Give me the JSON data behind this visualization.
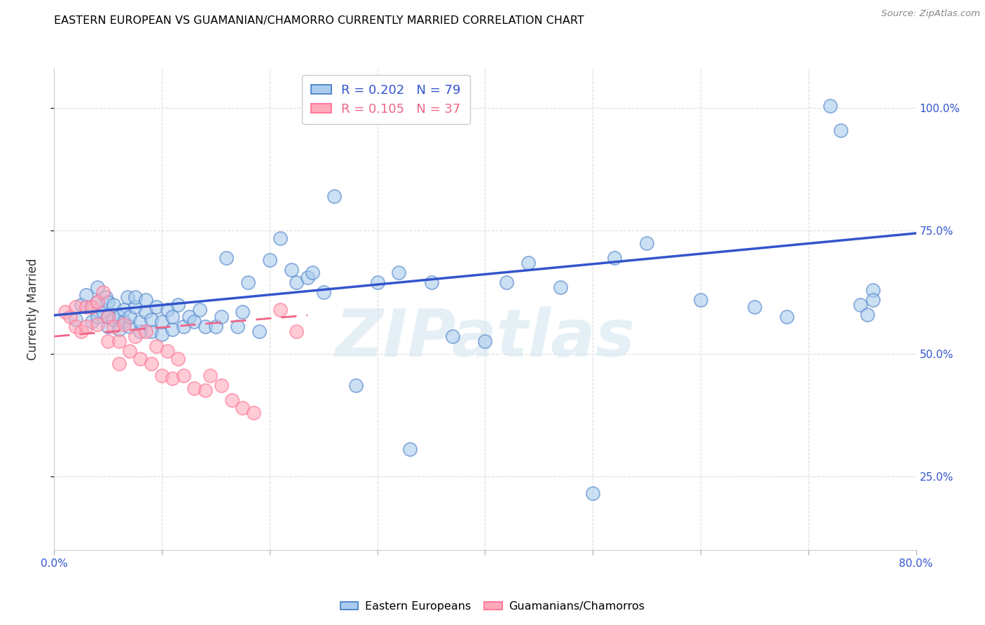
{
  "title": "EASTERN EUROPEAN VS GUAMANIAN/CHAMORRO CURRENTLY MARRIED CORRELATION CHART",
  "source": "Source: ZipAtlas.com",
  "ylabel": "Currently Married",
  "xlim": [
    0.0,
    0.8
  ],
  "ylim": [
    0.1,
    1.08
  ],
  "xtick_positions": [
    0.0,
    0.1,
    0.2,
    0.3,
    0.4,
    0.5,
    0.6,
    0.7,
    0.8
  ],
  "xticklabels": [
    "0.0%",
    "",
    "",
    "",
    "",
    "",
    "",
    "",
    "80.0%"
  ],
  "ytick_positions": [
    0.25,
    0.5,
    0.75,
    1.0
  ],
  "yticklabels": [
    "25.0%",
    "50.0%",
    "75.0%",
    "100.0%"
  ],
  "blue_R": 0.202,
  "blue_N": 79,
  "pink_R": 0.105,
  "pink_N": 37,
  "blue_fill_color": "#AACCEE",
  "blue_edge_color": "#5588CC",
  "pink_fill_color": "#FFAABB",
  "pink_edge_color": "#FF7799",
  "blue_line_color": "#3355CC",
  "pink_line_color": "#EE6688",
  "watermark_text": "ZIPatlas",
  "legend_label_blue": "Eastern Europeans",
  "legend_label_pink": "Guamanians/Chamorros",
  "blue_scatter_x": [
    0.02,
    0.025,
    0.03,
    0.035,
    0.035,
    0.04,
    0.04,
    0.04,
    0.045,
    0.048,
    0.05,
    0.05,
    0.05,
    0.055,
    0.055,
    0.06,
    0.06,
    0.065,
    0.065,
    0.068,
    0.07,
    0.07,
    0.075,
    0.075,
    0.08,
    0.08,
    0.085,
    0.085,
    0.09,
    0.09,
    0.095,
    0.1,
    0.1,
    0.105,
    0.11,
    0.11,
    0.115,
    0.12,
    0.125,
    0.13,
    0.135,
    0.14,
    0.15,
    0.155,
    0.16,
    0.17,
    0.175,
    0.18,
    0.19,
    0.2,
    0.21,
    0.22,
    0.225,
    0.235,
    0.24,
    0.25,
    0.26,
    0.28,
    0.3,
    0.32,
    0.33,
    0.35,
    0.37,
    0.4,
    0.42,
    0.44,
    0.47,
    0.5,
    0.52,
    0.55,
    0.6,
    0.65,
    0.68,
    0.72,
    0.73,
    0.748,
    0.755,
    0.76,
    0.76
  ],
  "blue_scatter_y": [
    0.57,
    0.6,
    0.62,
    0.565,
    0.595,
    0.575,
    0.605,
    0.635,
    0.585,
    0.615,
    0.555,
    0.575,
    0.605,
    0.57,
    0.6,
    0.55,
    0.575,
    0.565,
    0.59,
    0.615,
    0.555,
    0.575,
    0.595,
    0.615,
    0.545,
    0.565,
    0.585,
    0.61,
    0.545,
    0.57,
    0.595,
    0.54,
    0.565,
    0.59,
    0.55,
    0.575,
    0.6,
    0.555,
    0.575,
    0.565,
    0.59,
    0.555,
    0.555,
    0.575,
    0.695,
    0.555,
    0.585,
    0.645,
    0.545,
    0.69,
    0.735,
    0.67,
    0.645,
    0.655,
    0.665,
    0.625,
    0.82,
    0.435,
    0.645,
    0.665,
    0.305,
    0.645,
    0.535,
    0.525,
    0.645,
    0.685,
    0.635,
    0.215,
    0.695,
    0.725,
    0.61,
    0.595,
    0.575,
    1.005,
    0.955,
    0.6,
    0.58,
    0.63,
    0.61
  ],
  "pink_scatter_x": [
    0.01,
    0.015,
    0.02,
    0.02,
    0.025,
    0.03,
    0.03,
    0.035,
    0.04,
    0.04,
    0.045,
    0.05,
    0.05,
    0.055,
    0.06,
    0.06,
    0.065,
    0.07,
    0.075,
    0.08,
    0.085,
    0.09,
    0.095,
    0.1,
    0.105,
    0.11,
    0.115,
    0.12,
    0.13,
    0.14,
    0.145,
    0.155,
    0.165,
    0.175,
    0.185,
    0.21,
    0.225
  ],
  "pink_scatter_y": [
    0.585,
    0.575,
    0.555,
    0.595,
    0.545,
    0.555,
    0.595,
    0.595,
    0.56,
    0.605,
    0.625,
    0.525,
    0.575,
    0.555,
    0.48,
    0.525,
    0.56,
    0.505,
    0.535,
    0.49,
    0.545,
    0.48,
    0.515,
    0.455,
    0.505,
    0.45,
    0.49,
    0.455,
    0.43,
    0.425,
    0.455,
    0.435,
    0.405,
    0.39,
    0.38,
    0.59,
    0.545
  ],
  "blue_line_x": [
    0.0,
    0.8
  ],
  "blue_line_y": [
    0.578,
    0.745
  ],
  "pink_line_x": [
    0.0,
    0.235
  ],
  "pink_line_y": [
    0.535,
    0.578
  ]
}
